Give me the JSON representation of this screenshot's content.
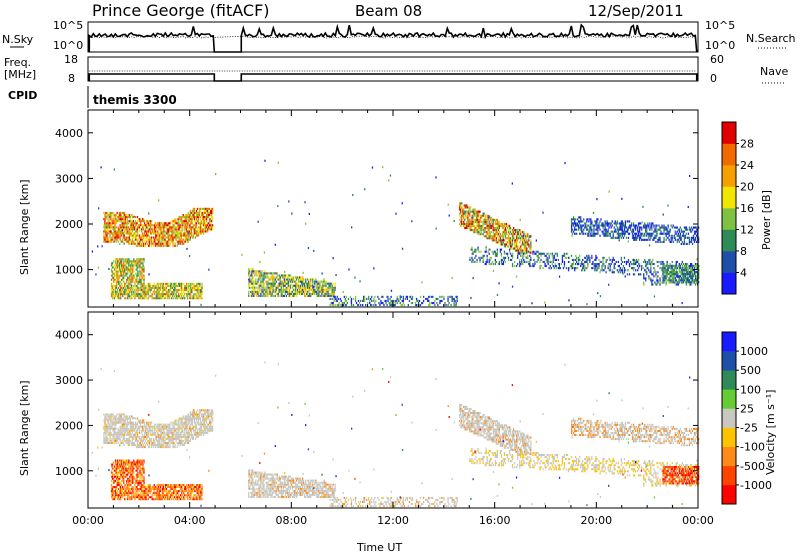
{
  "header": {
    "station": "Prince George (fitACF)",
    "beam": "Beam 08",
    "date": "12/Sep/2011"
  },
  "panels": {
    "nsky": {
      "left_label": "N.Sky",
      "right_label": "N.Search",
      "left_ticks": [
        "10^5",
        "10^0"
      ],
      "right_ticks": [
        "10^5",
        "10^0"
      ]
    },
    "freq": {
      "left_label_1": "Freq.",
      "left_label_2": "[MHz]",
      "left_ticks": [
        "18",
        "8"
      ],
      "right_label": "Nave",
      "right_ticks": [
        "60",
        "0"
      ]
    },
    "cpid": {
      "label": "CPID",
      "value": "themis 3300"
    }
  },
  "colors": {
    "power": [
      "#1a1aff",
      "#1f4fa8",
      "#2e8b57",
      "#7fc241",
      "#f2e600",
      "#f5a000",
      "#f06a00",
      "#e00000"
    ],
    "velocity": [
      "#ff0000",
      "#ff4400",
      "#ff8a1a",
      "#ffc400",
      "#c8c8c0",
      "#66cc33",
      "#2e8b57",
      "#1f4fa8",
      "#1a1aff"
    ],
    "ground_scatter": "#c8c8c0"
  },
  "chart_data": [
    {
      "type": "heatmap",
      "title": "Power",
      "xlabel": "",
      "ylabel": "Slant Range [km]",
      "colorbar_label": "Power [dB]",
      "colorbar_ticks": [
        "4",
        "8",
        "12",
        "16",
        "20",
        "24",
        "28"
      ],
      "xlim": [
        0,
        24
      ],
      "ylim": [
        180,
        4500
      ],
      "y_ticks": [
        "1000",
        "2000",
        "3000",
        "4000"
      ],
      "data_gaps_ut": [
        [
          5.0,
          6.0
        ]
      ],
      "echo_regions": [
        {
          "ut": [
            0.6,
            4.9
          ],
          "range_km": [
            1500,
            2300
          ],
          "power_db": [
            8,
            28
          ]
        },
        {
          "ut": [
            0.8,
            4.6
          ],
          "range_km": [
            400,
            1200
          ],
          "power_db": [
            8,
            26
          ]
        },
        {
          "ut": [
            6.4,
            9.6
          ],
          "range_km": [
            400,
            1000
          ],
          "power_db": [
            10,
            22
          ]
        },
        {
          "ut": [
            14.6,
            17.2
          ],
          "range_km": [
            1400,
            2400
          ],
          "power_db": [
            10,
            26
          ]
        },
        {
          "ut": [
            15.0,
            24.0
          ],
          "range_km": [
            600,
            1600
          ],
          "power_db": [
            6,
            16
          ]
        },
        {
          "ut": [
            19.0,
            24.0
          ],
          "range_km": [
            1500,
            2200
          ],
          "power_db": [
            6,
            16
          ]
        }
      ]
    },
    {
      "type": "heatmap",
      "title": "Velocity",
      "xlabel": "Time UT",
      "ylabel": "Slant Range [km]",
      "colorbar_label": "Velocity [m s⁻¹]",
      "colorbar_ticks": [
        "-1000",
        "-500",
        "-100",
        "-25",
        "25",
        "100",
        "500",
        "1000"
      ],
      "x_ticks": [
        "00:00",
        "04:00",
        "08:00",
        "12:00",
        "16:00",
        "20:00",
        "00:00"
      ],
      "xlim": [
        0,
        24
      ],
      "ylim": [
        180,
        4500
      ],
      "y_ticks": [
        "1000",
        "2000",
        "3000",
        "4000"
      ],
      "data_gaps_ut": [
        [
          5.0,
          6.0
        ]
      ]
    }
  ]
}
